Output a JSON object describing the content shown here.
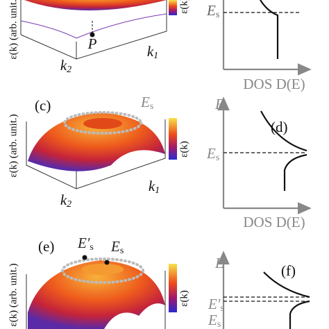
{
  "panels": [
    {
      "ylabel": "ε(k) (arb. unit.)",
      "cbar_label": "ε(k)",
      "point": "P",
      "k_left": {
        "main": "k",
        "sub": "2"
      },
      "k_right": {
        "main": "k",
        "sub": "1"
      },
      "energy_label": {
        "main": "E",
        "sub": "s"
      },
      "x_axis": "DOS D(E)"
    },
    {
      "label_left": "(c)",
      "ring_label": {
        "main": "E",
        "sub": "s"
      },
      "ylabel": "ε(k) (arb. unit.)",
      "cbar_label": "ε(k)",
      "k_left": {
        "main": "k",
        "sub": "2"
      },
      "k_right": {
        "main": "k",
        "sub": "1"
      },
      "label_right": "(d)",
      "e_axis": "E",
      "energy_label": {
        "main": "E",
        "sub": "s"
      },
      "x_axis": "DOS D(E)"
    },
    {
      "label_left": "(e)",
      "ring_label_prime": {
        "main": "E′",
        "sub": "s"
      },
      "ring_label": {
        "main": "E",
        "sub": "s"
      },
      "ylabel": "ε(k) (arb. unit.)",
      "cbar_label": "ε(k)",
      "label_right": "(f)",
      "e_axis": "E",
      "energy_label_prime": {
        "main": "E′",
        "sub": "s"
      },
      "energy_label": {
        "main": "E",
        "sub": "s"
      }
    }
  ]
}
